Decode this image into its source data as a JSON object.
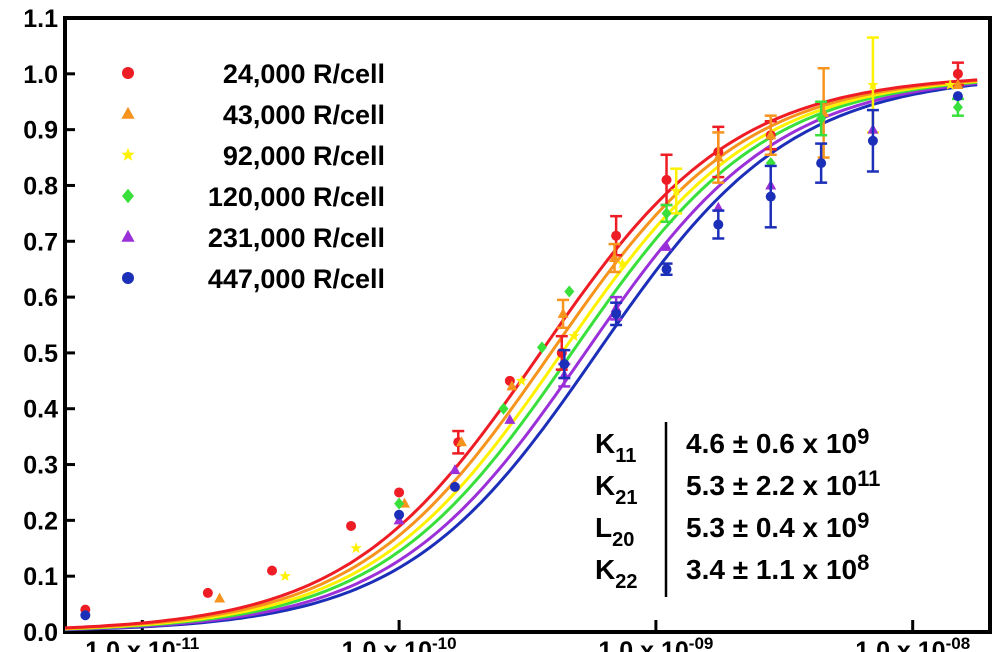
{
  "chart_data": {
    "type": "scatter",
    "x_scale": "log",
    "xlim": [
      5e-12,
      2e-08
    ],
    "ylim": [
      0.0,
      1.1
    ],
    "y_ticks": [
      {
        "value": 0.0,
        "label": "0.0"
      },
      {
        "value": 0.1,
        "label": "0.1"
      },
      {
        "value": 0.2,
        "label": "0.2"
      },
      {
        "value": 0.3,
        "label": "0.3"
      },
      {
        "value": 0.4,
        "label": "0.4"
      },
      {
        "value": 0.5,
        "label": "0.5"
      },
      {
        "value": 0.6,
        "label": "0.6"
      },
      {
        "value": 0.7,
        "label": "0.7"
      },
      {
        "value": 0.8,
        "label": "0.8"
      },
      {
        "value": 0.9,
        "label": "0.9"
      },
      {
        "value": 1.0,
        "label": "1.0"
      },
      {
        "value": 1.1,
        "label": "1.1"
      }
    ],
    "x_ticks": [
      {
        "value": 1e-11,
        "mantissa": "1.0",
        "times": "10",
        "exp": "-11"
      },
      {
        "value": 1e-10,
        "mantissa": "1.0",
        "times": "10",
        "exp": "-10"
      },
      {
        "value": 1e-09,
        "mantissa": "1.0",
        "times": "10",
        "exp": "-09"
      },
      {
        "value": 1e-08,
        "mantissa": "1.0",
        "times": "10",
        "exp": "-08"
      }
    ],
    "grid": false,
    "legend_position": "top-left",
    "series": [
      {
        "name": "24,000 R/cell",
        "marker": "circle",
        "color": "#ee1c25",
        "curve_ec50": 3.55e-10,
        "points": [
          {
            "x": 6e-12,
            "y": 0.04
          },
          {
            "x": 1.8e-11,
            "y": 0.07
          },
          {
            "x": 3.2e-11,
            "y": 0.11
          },
          {
            "x": 6.5e-11,
            "y": 0.19
          },
          {
            "x": 1e-10,
            "y": 0.25
          },
          {
            "x": 1.7e-10,
            "y": 0.34,
            "err": 0.02
          },
          {
            "x": 2.7e-10,
            "y": 0.45
          },
          {
            "x": 4.3e-10,
            "y": 0.5,
            "err": 0.03
          },
          {
            "x": 7e-10,
            "y": 0.71,
            "err": 0.035
          },
          {
            "x": 1.1e-09,
            "y": 0.81,
            "err": 0.045
          },
          {
            "x": 1.75e-09,
            "y": 0.86,
            "err": 0.045
          },
          {
            "x": 2.8e-09,
            "y": 0.89,
            "err": 0.025
          },
          {
            "x": 1.5e-08,
            "y": 1.0,
            "err": 0.02
          }
        ]
      },
      {
        "name": "43,000 R/cell",
        "marker": "triangle",
        "color": "#f7941d",
        "curve_ec50": 3.9e-10,
        "points": [
          {
            "x": 2e-11,
            "y": 0.06
          },
          {
            "x": 1.05e-10,
            "y": 0.23
          },
          {
            "x": 1.75e-10,
            "y": 0.34
          },
          {
            "x": 2.75e-10,
            "y": 0.44
          },
          {
            "x": 4.35e-10,
            "y": 0.57,
            "err": 0.025
          },
          {
            "x": 6.9e-10,
            "y": 0.67,
            "err": 0.025
          },
          {
            "x": 1.75e-09,
            "y": 0.85,
            "err": 0.045
          },
          {
            "x": 2.8e-09,
            "y": 0.89,
            "err": 0.035
          },
          {
            "x": 4.5e-09,
            "y": 0.93,
            "err": 0.08
          },
          {
            "x": 1.5e-08,
            "y": 0.98
          }
        ]
      },
      {
        "name": "92,000 R/cell",
        "marker": "star",
        "color": "#fff200",
        "curve_ec50": 4.3e-10,
        "points": [
          {
            "x": 3.6e-11,
            "y": 0.1
          },
          {
            "x": 6.8e-11,
            "y": 0.15
          },
          {
            "x": 3e-10,
            "y": 0.45
          },
          {
            "x": 4.8e-10,
            "y": 0.53
          },
          {
            "x": 7.4e-10,
            "y": 0.66
          },
          {
            "x": 1.2e-09,
            "y": 0.79,
            "err": 0.04
          },
          {
            "x": 7e-09,
            "y": 0.98,
            "err": 0.085
          },
          {
            "x": 1.4e-08,
            "y": 0.98
          }
        ]
      },
      {
        "name": "120,000 R/cell",
        "marker": "diamond",
        "color": "#39e03c",
        "curve_ec50": 4.7e-10,
        "points": [
          {
            "x": 1e-10,
            "y": 0.23
          },
          {
            "x": 2.55e-10,
            "y": 0.4
          },
          {
            "x": 3.6e-10,
            "y": 0.51
          },
          {
            "x": 4.6e-10,
            "y": 0.61
          },
          {
            "x": 1.1e-09,
            "y": 0.75,
            "err": 0.015
          },
          {
            "x": 2.8e-09,
            "y": 0.84
          },
          {
            "x": 4.4e-09,
            "y": 0.92,
            "err": 0.03
          },
          {
            "x": 1.5e-08,
            "y": 0.94,
            "err": 0.015
          }
        ]
      },
      {
        "name": "231,000 R/cell",
        "marker": "triangle",
        "color": "#9b30d9",
        "curve_ec50": 5.3e-10,
        "points": [
          {
            "x": 1e-10,
            "y": 0.2
          },
          {
            "x": 1.65e-10,
            "y": 0.29
          },
          {
            "x": 2.7e-10,
            "y": 0.38
          },
          {
            "x": 4.4e-10,
            "y": 0.46,
            "err": 0.02
          },
          {
            "x": 7e-10,
            "y": 0.58,
            "err": 0.02
          },
          {
            "x": 1.1e-09,
            "y": 0.69
          },
          {
            "x": 1.75e-09,
            "y": 0.76
          },
          {
            "x": 2.8e-09,
            "y": 0.8
          },
          {
            "x": 7e-09,
            "y": 0.9
          }
        ]
      },
      {
        "name": "447,000 R/cell",
        "marker": "circle",
        "color": "#1c2fb8",
        "curve_ec50": 5.9e-10,
        "points": [
          {
            "x": 6e-12,
            "y": 0.03
          },
          {
            "x": 1e-10,
            "y": 0.21
          },
          {
            "x": 1.65e-10,
            "y": 0.26
          },
          {
            "x": 4.4e-10,
            "y": 0.48,
            "err": 0.025
          },
          {
            "x": 7e-10,
            "y": 0.57,
            "err": 0.02
          },
          {
            "x": 1.1e-09,
            "y": 0.65,
            "err": 0.01
          },
          {
            "x": 1.75e-09,
            "y": 0.73,
            "err": 0.025
          },
          {
            "x": 2.8e-09,
            "y": 0.78,
            "err": 0.055
          },
          {
            "x": 4.4e-09,
            "y": 0.84,
            "err": 0.035
          },
          {
            "x": 7e-09,
            "y": 0.88,
            "err": 0.055
          },
          {
            "x": 1.5e-08,
            "y": 0.96
          }
        ]
      }
    ],
    "annotation": {
      "position": "bottom-right",
      "rows": [
        {
          "symbol": "K",
          "subscript": "11",
          "value": "4.6 ± 0.6 x 10",
          "exponent": "9"
        },
        {
          "symbol": "K",
          "subscript": "21",
          "value": "5.3 ± 2.2 x 10",
          "exponent": "11"
        },
        {
          "symbol": "L",
          "subscript": "20",
          "value": "5.3 ± 0.4 x 10",
          "exponent": "9"
        },
        {
          "symbol": "K",
          "subscript": "22",
          "value": "3.4 ± 1.1 x 10",
          "exponent": "8"
        }
      ]
    }
  }
}
